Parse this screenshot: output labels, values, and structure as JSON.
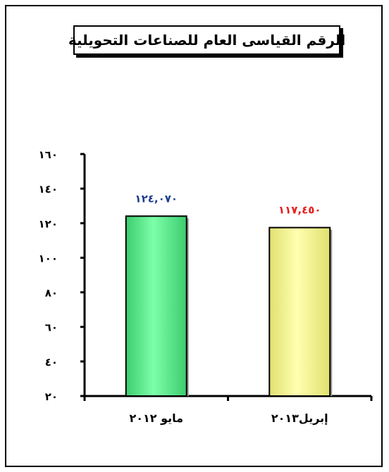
{
  "chart_data": {
    "type": "bar",
    "title": "الرقم القياسى العام للصناعات التحويلية",
    "categories": [
      "مايو ٢٠١٢",
      "إبريل٢٠١٣"
    ],
    "values": [
      124.07,
      117.45
    ],
    "value_labels": [
      "١٢٤,٠٧٠",
      "١١٧,٤٥٠"
    ],
    "ylim": [
      20,
      160
    ],
    "y_ticks": [
      20,
      40,
      60,
      80,
      100,
      120,
      140,
      160
    ],
    "y_tick_labels": [
      "٢٠",
      "٤٠",
      "٦٠",
      "٨٠",
      "١٠٠",
      "١٢٠",
      "١٤٠",
      "١٦٠"
    ],
    "grid": false,
    "legend": "none",
    "colors": {
      "bars": [
        "#66ff99",
        "#ffff99"
      ],
      "value_labels": [
        "#1f3f8f",
        "#e81c1c"
      ],
      "axis": "#000000"
    }
  }
}
